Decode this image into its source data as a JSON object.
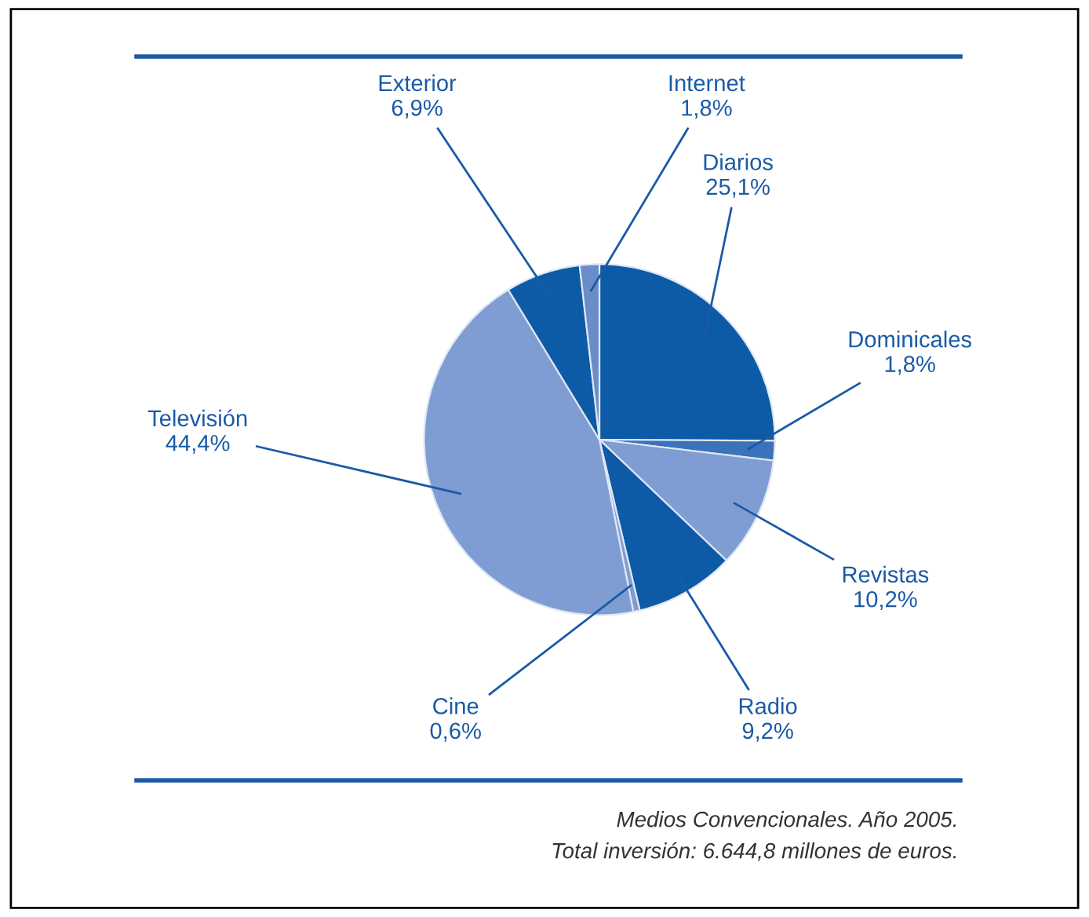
{
  "chart_data": {
    "type": "pie",
    "categories": [
      "Diarios",
      "Dominicales",
      "Revistas",
      "Radio",
      "Cine",
      "Televisión",
      "Exterior",
      "Internet"
    ],
    "values": [
      25.1,
      1.8,
      10.2,
      9.2,
      0.6,
      44.4,
      6.9,
      1.8
    ],
    "value_labels": [
      "25,1%",
      "1,8%",
      "10,2%",
      "9,2%",
      "0,6%",
      "44,4%",
      "6,9%",
      "1,8%"
    ],
    "colors": [
      "#0d5aa7",
      "#3a72bb",
      "#7f9dd2",
      "#0d5aa7",
      "#7f9dd2",
      "#7f9dd2",
      "#0d5aa7",
      "#6a8cc8"
    ],
    "annotations": [
      "Medios Convencionales. Año 2005.",
      "Total inversión: 6.644,8 millones de euros."
    ]
  }
}
